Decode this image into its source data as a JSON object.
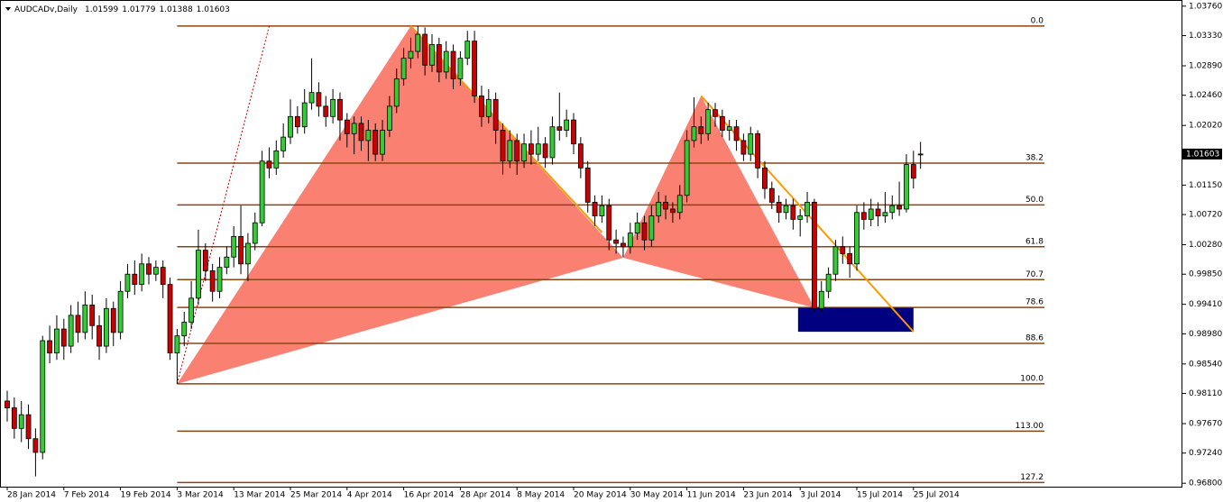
{
  "chart_data": {
    "type": "candlestick",
    "title": "AUDCADv,Daily",
    "bull_color": "#33cc33",
    "bear_color": "#cc0000",
    "ylim": [
      0.9675,
      1.0385
    ],
    "yticks": [
      {
        "value": 1.0376,
        "label": "1.03760"
      },
      {
        "value": 1.0333,
        "label": "1.03330"
      },
      {
        "value": 1.0289,
        "label": "1.02890"
      },
      {
        "value": 1.0246,
        "label": "1.02460"
      },
      {
        "value": 1.0202,
        "label": "1.02020"
      },
      {
        "value": 1.0115,
        "label": "1.01150"
      },
      {
        "value": 1.0072,
        "label": "1.00720"
      },
      {
        "value": 1.0028,
        "label": "1.00280"
      },
      {
        "value": 0.9985,
        "label": "0.99850"
      },
      {
        "value": 0.9941,
        "label": "0.99410"
      },
      {
        "value": 0.9898,
        "label": "0.98980"
      },
      {
        "value": 0.9854,
        "label": "0.98540"
      },
      {
        "value": 0.9811,
        "label": "0.98110"
      },
      {
        "value": 0.9767,
        "label": "0.97670"
      },
      {
        "value": 0.9724,
        "label": "0.97240"
      },
      {
        "value": 0.968,
        "label": "0.96800"
      }
    ],
    "categories": [
      "28 Jan 2014",
      null,
      null,
      null,
      null,
      null,
      null,
      null,
      "7 Feb 2014",
      null,
      null,
      null,
      null,
      null,
      null,
      null,
      "19 Feb 2014",
      null,
      null,
      null,
      null,
      null,
      null,
      null,
      "3 Mar 2014",
      null,
      null,
      null,
      null,
      null,
      null,
      null,
      "13 Mar 2014",
      null,
      null,
      null,
      null,
      null,
      null,
      null,
      "25 Mar 2014",
      null,
      null,
      null,
      null,
      null,
      null,
      null,
      "4 Apr 2014",
      null,
      null,
      null,
      null,
      null,
      null,
      null,
      "16 Apr 2014",
      null,
      null,
      null,
      null,
      null,
      null,
      null,
      "28 Apr 2014",
      null,
      null,
      null,
      null,
      null,
      null,
      null,
      "8 May 2014",
      null,
      null,
      null,
      null,
      null,
      null,
      null,
      "20 May 2014",
      null,
      null,
      null,
      null,
      null,
      null,
      null,
      "30 May 2014",
      null,
      null,
      null,
      null,
      null,
      null,
      null,
      "11 Jun 2014",
      null,
      null,
      null,
      null,
      null,
      null,
      null,
      "23 Jun 2014",
      null,
      null,
      null,
      null,
      null,
      null,
      null,
      "3 Jul 2014",
      null,
      null,
      null,
      null,
      null,
      null,
      null,
      "15 Jul 2014",
      null,
      null,
      null,
      null,
      null,
      null,
      null,
      "25 Jul 2014",
      null
    ],
    "ohlc": [
      [
        0.98,
        0.9815,
        0.977,
        0.979
      ],
      [
        0.979,
        0.9805,
        0.9745,
        0.976
      ],
      [
        0.976,
        0.98,
        0.974,
        0.978
      ],
      [
        0.978,
        0.9795,
        0.973,
        0.9745
      ],
      [
        0.9745,
        0.976,
        0.969,
        0.9725
      ],
      [
        0.9725,
        0.9895,
        0.9715,
        0.9888
      ],
      [
        0.9888,
        0.991,
        0.9855,
        0.987
      ],
      [
        0.987,
        0.9925,
        0.986,
        0.9905
      ],
      [
        0.9905,
        0.992,
        0.986,
        0.988
      ],
      [
        0.988,
        0.994,
        0.987,
        0.9925
      ],
      [
        0.9925,
        0.9945,
        0.9885,
        0.99
      ],
      [
        0.99,
        0.996,
        0.989,
        0.994
      ],
      [
        0.994,
        0.9955,
        0.989,
        0.991
      ],
      [
        0.991,
        0.9925,
        0.986,
        0.988
      ],
      [
        0.988,
        0.995,
        0.987,
        0.9935
      ],
      [
        0.9935,
        0.9945,
        0.988,
        0.99
      ],
      [
        0.99,
        0.9975,
        0.989,
        0.996
      ],
      [
        0.996,
        1.0,
        0.995,
        0.9985
      ],
      [
        0.9985,
        1.0005,
        0.9955,
        0.997
      ],
      [
        0.997,
        1.0015,
        0.996,
        1.0
      ],
      [
        1.0,
        1.001,
        0.997,
        0.9985
      ],
      [
        0.9985,
        1.0005,
        0.9975,
        0.9995
      ],
      [
        0.9995,
        1.0005,
        0.995,
        0.997
      ],
      [
        0.997,
        0.998,
        0.986,
        0.987
      ],
      [
        0.987,
        0.9905,
        0.9825,
        0.9895
      ],
      [
        0.9895,
        0.993,
        0.988,
        0.9915
      ],
      [
        0.9915,
        0.9975,
        0.9905,
        0.995
      ],
      [
        0.995,
        1.005,
        0.994,
        1.002
      ],
      [
        1.002,
        1.003,
        0.9975,
        0.999
      ],
      [
        0.999,
        1.0,
        0.9945,
        0.996
      ],
      [
        0.996,
        1.001,
        0.995,
        0.9995
      ],
      [
        0.9995,
        1.0025,
        0.9985,
        1.001
      ],
      [
        1.001,
        1.0055,
        0.9995,
        1.004
      ],
      [
        1.004,
        1.0085,
        0.9985,
        1.0
      ],
      [
        1.0,
        1.0045,
        0.9975,
        1.003
      ],
      [
        1.003,
        1.0075,
        1.002,
        1.006
      ],
      [
        1.006,
        1.0165,
        1.0055,
        1.015
      ],
      [
        1.015,
        1.017,
        1.0125,
        1.014
      ],
      [
        1.014,
        1.018,
        1.013,
        1.0165
      ],
      [
        1.0165,
        1.0205,
        1.0155,
        1.0185
      ],
      [
        1.0185,
        1.024,
        1.0175,
        1.0215
      ],
      [
        1.0215,
        1.023,
        1.019,
        1.02
      ],
      [
        1.02,
        1.0255,
        1.019,
        1.0235
      ],
      [
        1.0235,
        1.03,
        1.0225,
        1.025
      ],
      [
        1.025,
        1.0265,
        1.0215,
        1.023
      ],
      [
        1.023,
        1.0245,
        1.02,
        1.0215
      ],
      [
        1.0215,
        1.0255,
        1.0205,
        1.024
      ],
      [
        1.024,
        1.025,
        1.018,
        1.021
      ],
      [
        1.021,
        1.022,
        1.017,
        1.019
      ],
      [
        1.019,
        1.0215,
        1.016,
        1.0205
      ],
      [
        1.0205,
        1.0215,
        1.0165,
        1.018
      ],
      [
        1.018,
        1.021,
        1.015,
        1.0195
      ],
      [
        1.0195,
        1.0205,
        1.015,
        1.016
      ],
      [
        1.016,
        1.021,
        1.015,
        1.0195
      ],
      [
        1.0195,
        1.0245,
        1.0185,
        1.023
      ],
      [
        1.023,
        1.0285,
        1.022,
        1.027
      ],
      [
        1.027,
        1.0315,
        1.026,
        1.03
      ],
      [
        1.03,
        1.033,
        1.0285,
        1.031
      ],
      [
        1.031,
        1.0347,
        1.03,
        1.0335
      ],
      [
        1.0335,
        1.0345,
        1.0275,
        1.029
      ],
      [
        1.029,
        1.0335,
        1.028,
        1.032
      ],
      [
        1.032,
        1.033,
        1.0265,
        1.028
      ],
      [
        1.028,
        1.0325,
        1.027,
        1.031
      ],
      [
        1.031,
        1.032,
        1.0255,
        1.027
      ],
      [
        1.027,
        1.031,
        1.026,
        1.03
      ],
      [
        1.03,
        1.034,
        1.029,
        1.0325
      ],
      [
        1.0325,
        1.034,
        1.0235,
        1.0245
      ],
      [
        1.0245,
        1.026,
        1.02,
        1.0215
      ],
      [
        1.0215,
        1.0255,
        1.0205,
        1.024
      ],
      [
        1.024,
        1.025,
        1.0175,
        1.0195
      ],
      [
        1.0195,
        1.0205,
        1.013,
        1.015
      ],
      [
        1.015,
        1.0195,
        1.014,
        1.018
      ],
      [
        1.018,
        1.019,
        1.013,
        1.015
      ],
      [
        1.015,
        1.019,
        1.014,
        1.0175
      ],
      [
        1.0175,
        1.0195,
        1.0145,
        1.016
      ],
      [
        1.016,
        1.02,
        1.015,
        1.0175
      ],
      [
        1.0175,
        1.0185,
        1.014,
        1.0155
      ],
      [
        1.0155,
        1.0215,
        1.0145,
        1.02
      ],
      [
        1.02,
        1.025,
        1.018,
        1.0195
      ],
      [
        1.0195,
        1.0225,
        1.0185,
        1.021
      ],
      [
        1.021,
        1.022,
        1.016,
        1.0175
      ],
      [
        1.0175,
        1.0185,
        1.0125,
        1.014
      ],
      [
        1.014,
        1.015,
        1.0075,
        1.009
      ],
      [
        1.009,
        1.01,
        1.0055,
        1.007
      ],
      [
        1.007,
        1.01,
        1.006,
        1.0085
      ],
      [
        1.0085,
        1.0095,
        1.002,
        1.0035
      ],
      [
        1.0035,
        1.005,
        1.0015,
        1.003
      ],
      [
        1.003,
        1.004,
        1.001,
        1.0025
      ],
      [
        1.0025,
        1.006,
        1.0015,
        1.0045
      ],
      [
        1.0045,
        1.0075,
        1.0035,
        1.006
      ],
      [
        1.006,
        1.007,
        1.002,
        1.0035
      ],
      [
        1.0035,
        1.0085,
        1.0025,
        1.007
      ],
      [
        1.007,
        1.0105,
        1.006,
        1.009
      ],
      [
        1.009,
        1.01,
        1.0065,
        1.008
      ],
      [
        1.008,
        1.009,
        1.006,
        1.0075
      ],
      [
        1.0075,
        1.0115,
        1.0065,
        1.01
      ],
      [
        1.01,
        1.0195,
        1.009,
        1.018
      ],
      [
        1.018,
        1.0243,
        1.017,
        1.02
      ],
      [
        1.02,
        1.0215,
        1.0175,
        1.019
      ],
      [
        1.019,
        1.0235,
        1.018,
        1.0225
      ],
      [
        1.0225,
        1.0235,
        1.02,
        1.0215
      ],
      [
        1.0215,
        1.0225,
        1.0185,
        1.0195
      ],
      [
        1.0195,
        1.021,
        1.018,
        1.02
      ],
      [
        1.02,
        1.021,
        1.0165,
        1.018
      ],
      [
        1.018,
        1.019,
        1.015,
        1.016
      ],
      [
        1.016,
        1.02,
        1.015,
        1.019
      ],
      [
        1.019,
        1.0195,
        1.0125,
        1.014
      ],
      [
        1.014,
        1.015,
        1.0095,
        1.011
      ],
      [
        1.011,
        1.012,
        1.008,
        1.009
      ],
      [
        1.009,
        1.01,
        1.006,
        1.0075
      ],
      [
        1.0075,
        1.0095,
        1.0065,
        1.0085
      ],
      [
        1.0085,
        1.0095,
        1.005,
        1.0065
      ],
      [
        1.0065,
        1.008,
        1.004,
        1.007
      ],
      [
        1.007,
        1.0105,
        1.006,
        1.009
      ],
      [
        1.009,
        1.0095,
        0.993,
        0.9935
      ],
      [
        0.9935,
        0.9975,
        0.993,
        0.996
      ],
      [
        0.996,
        0.9995,
        0.995,
        0.9985
      ],
      [
        0.9985,
        1.0035,
        0.9975,
        1.0025
      ],
      [
        1.0025,
        1.004,
        1.0,
        1.0015
      ],
      [
        1.0015,
        1.0025,
        0.998,
        1.0
      ],
      [
        1.0,
        1.0085,
        0.999,
        1.0075
      ],
      [
        1.0075,
        1.009,
        1.005,
        1.0065
      ],
      [
        1.0065,
        1.0095,
        1.0055,
        1.008
      ],
      [
        1.008,
        1.009,
        1.0055,
        1.007
      ],
      [
        1.007,
        1.0105,
        1.006,
        1.0075
      ],
      [
        1.0075,
        1.01,
        1.0065,
        1.0085
      ],
      [
        1.0085,
        1.012,
        1.007,
        1.008
      ],
      [
        1.008,
        1.016,
        1.0075,
        1.0145
      ],
      [
        1.0145,
        1.0165,
        1.011,
        1.0125
      ],
      [
        1.01599,
        1.01779,
        1.01388,
        1.01603
      ]
    ],
    "fib": {
      "color": "#8b4513",
      "start_x": 24,
      "levels": [
        {
          "label": "0.0",
          "price": 1.0347
        },
        {
          "label": "38.2",
          "price": 1.0147
        },
        {
          "label": "50.0",
          "price": 1.0086
        },
        {
          "label": "61.8",
          "price": 1.0025
        },
        {
          "label": "70.7",
          "price": 0.9977
        },
        {
          "label": "78.6",
          "price": 0.99365
        },
        {
          "label": "88.6",
          "price": 0.9884
        },
        {
          "label": "100.0",
          "price": 0.9825
        },
        {
          "label": "113.00",
          "price": 0.9756
        },
        {
          "label": "127.2",
          "price": 0.9681
        }
      ]
    },
    "pattern": {
      "color": "#fa8072",
      "x": [
        24,
        57,
        87,
        98,
        114
      ],
      "y": [
        0.9825,
        1.0347,
        1.0009,
        1.0245,
        0.9936
      ]
    },
    "trend_lines": {
      "color": "#ff9900",
      "lines": [
        {
          "x": [
            57,
            84
          ],
          "y": [
            1.0347,
            1.0046
          ]
        },
        {
          "x": [
            98,
            128
          ],
          "y": [
            1.0245,
            0.9901
          ]
        }
      ]
    },
    "dashed_line": {
      "color": "#cc0000",
      "x": [
        24,
        37
      ],
      "y": [
        0.9825,
        1.0347
      ]
    },
    "zone": {
      "color": "#000080",
      "x": [
        111.7,
        128
      ],
      "y": [
        0.9936,
        0.9901
      ]
    }
  }
}
